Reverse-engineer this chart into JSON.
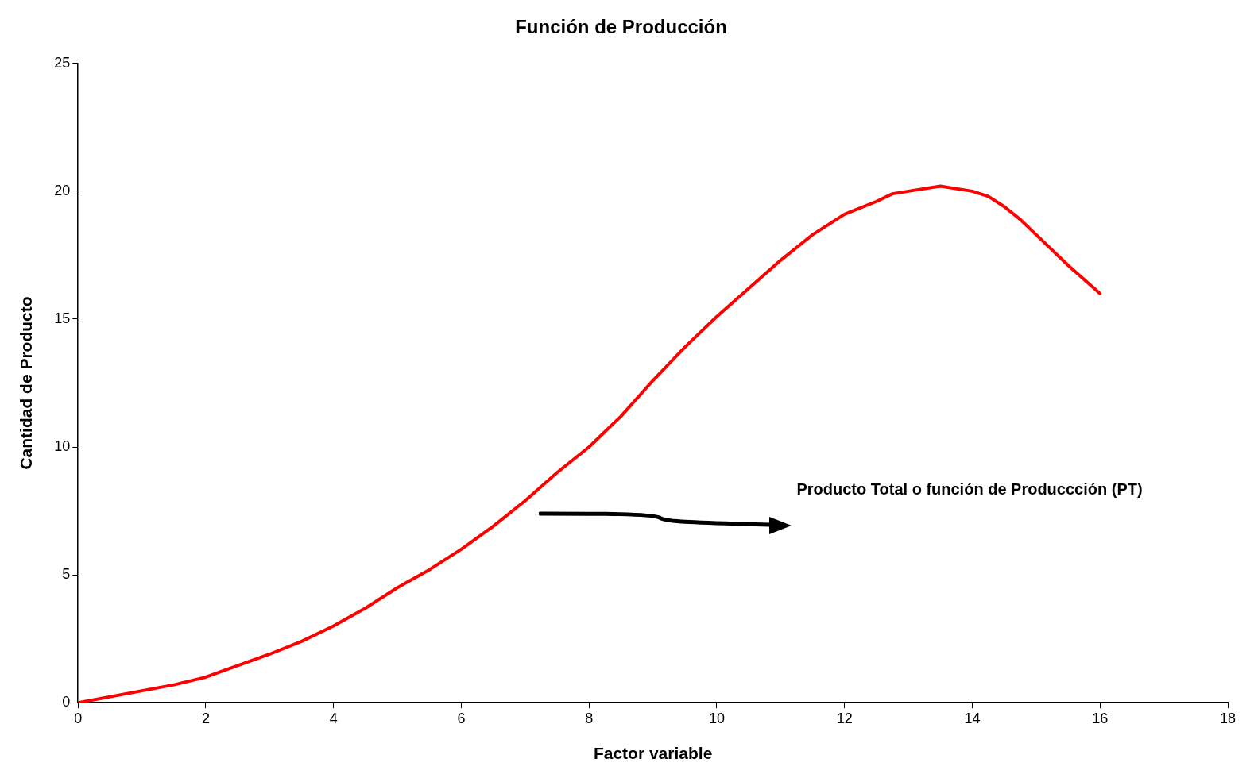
{
  "chart_data": {
    "type": "line",
    "title": "Función de Producción",
    "xlabel": "Factor variable",
    "ylabel": "Cantidad de Producto",
    "x": [
      0,
      1.5,
      2,
      3,
      3.5,
      4,
      4.5,
      5,
      5.5,
      6,
      6.5,
      7,
      7.5,
      8,
      8.5,
      9,
      9.5,
      10,
      10.5,
      11,
      11.5,
      12,
      12.5,
      12.75,
      13,
      13.5,
      14,
      14.25,
      14.5,
      14.75,
      15,
      15.5,
      16
    ],
    "series": [
      {
        "color": "#ff0000",
        "values": [
          0,
          0.7,
          1.0,
          1.9,
          2.4,
          3.0,
          3.7,
          4.5,
          5.2,
          6.0,
          6.9,
          7.9,
          9.0,
          10.0,
          11.2,
          12.6,
          13.9,
          15.1,
          16.2,
          17.3,
          18.3,
          19.1,
          19.6,
          19.9,
          20.0,
          20.2,
          20.0,
          19.8,
          19.4,
          18.9,
          18.3,
          17.1,
          16.0
        ]
      }
    ],
    "xlim": [
      0,
      18
    ],
    "xticks": [
      0,
      2,
      4,
      6,
      8,
      10,
      12,
      14,
      16,
      18
    ],
    "ylim": [
      0,
      25
    ],
    "yticks": [
      0,
      5,
      10,
      15,
      20,
      25
    ],
    "marker": "none",
    "line_style": "solid",
    "legend": false,
    "annotations": [
      "Producto Total o función de Produccción (PT)"
    ]
  }
}
